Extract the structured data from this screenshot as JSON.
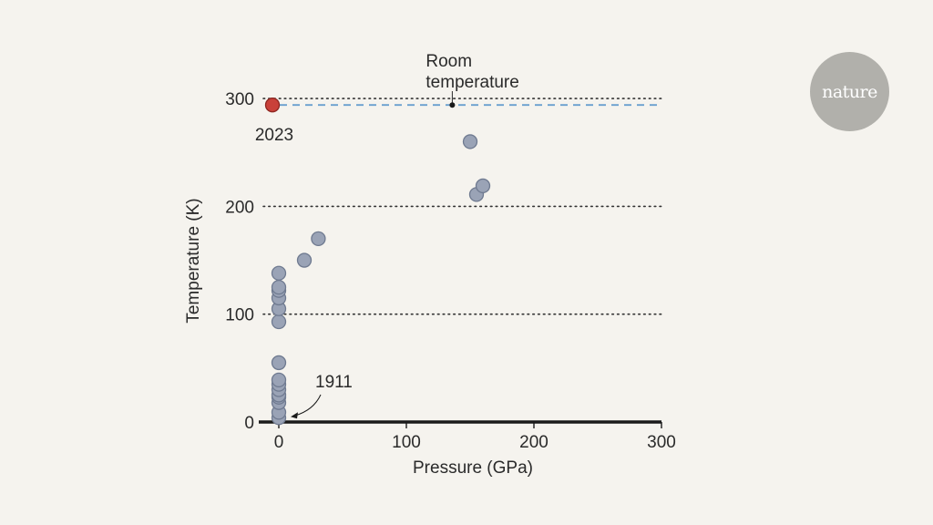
{
  "logo": {
    "text": "nature"
  },
  "chart_data": {
    "type": "scatter",
    "xlabel": "Pressure (GPa)",
    "ylabel": "Temperature (K)",
    "xlim": [
      -14,
      300
    ],
    "ylim": [
      0,
      310
    ],
    "x_ticks": [
      0,
      100,
      200,
      300
    ],
    "y_ticks": [
      0,
      100,
      200,
      300
    ],
    "grid": "dotted horizontal lines at 100, 200, 300",
    "colors": {
      "point": "#9aa3b6",
      "point_edge": "#6f7a90",
      "highlight": "#c9413a",
      "highlight_edge": "#8f2621",
      "room_line": "#6aa0cf"
    },
    "points": [
      {
        "x": 0,
        "y": 4
      },
      {
        "x": 0,
        "y": 9
      },
      {
        "x": 0,
        "y": 18
      },
      {
        "x": 0,
        "y": 23
      },
      {
        "x": 0,
        "y": 25
      },
      {
        "x": 0,
        "y": 30
      },
      {
        "x": 0,
        "y": 35
      },
      {
        "x": 0,
        "y": 39
      },
      {
        "x": 0,
        "y": 55
      },
      {
        "x": 0,
        "y": 93
      },
      {
        "x": 0,
        "y": 105
      },
      {
        "x": 0,
        "y": 115
      },
      {
        "x": 0,
        "y": 122
      },
      {
        "x": 0,
        "y": 125
      },
      {
        "x": 0,
        "y": 138
      },
      {
        "x": 20,
        "y": 150
      },
      {
        "x": 31,
        "y": 170
      },
      {
        "x": 150,
        "y": 260
      },
      {
        "x": 155,
        "y": 211
      },
      {
        "x": 160,
        "y": 219
      }
    ],
    "highlight_point": {
      "x": -5,
      "y": 294,
      "label": "2023"
    },
    "reference_line": {
      "y": 294,
      "label": "Room temperature",
      "label_lines": [
        "Room",
        "temperature"
      ],
      "marker_x": 136
    },
    "annotations": [
      {
        "label": "1911",
        "x": 0,
        "y": 4
      }
    ]
  }
}
